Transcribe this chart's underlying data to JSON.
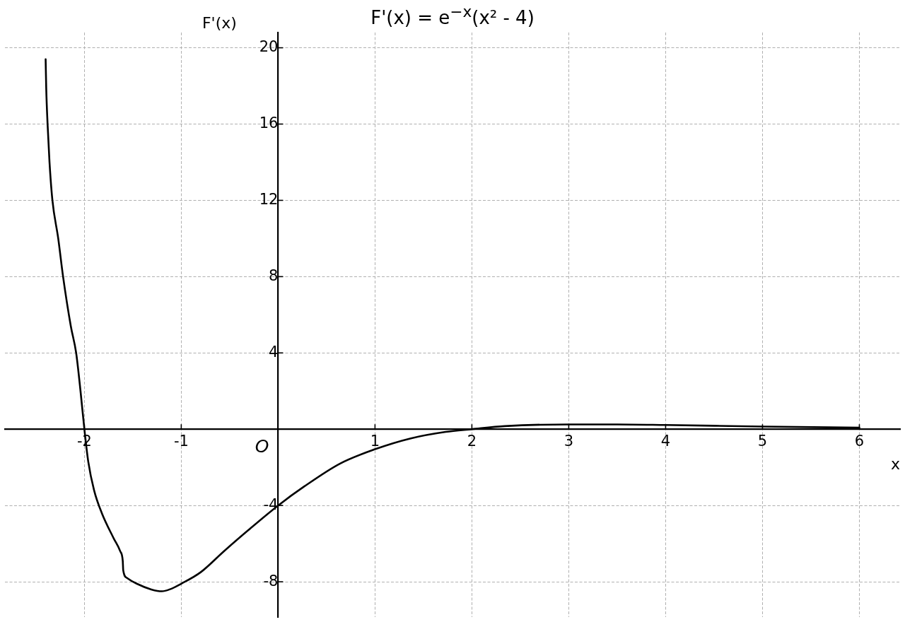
{
  "chart_data": {
    "type": "line",
    "title": "F'(x) = e$^{−x}$(x² - 4)",
    "xlabel": "x",
    "ylabel": "F'(x)",
    "annotations": [
      "O"
    ],
    "xlim": [
      -2.82,
      6.42
    ],
    "ylim": [
      -9.85,
      20.8
    ],
    "xticks": [
      -2,
      -1,
      1,
      2,
      3,
      4,
      5,
      6
    ],
    "yticks": [
      -8,
      -4,
      4,
      8,
      12,
      16,
      20
    ],
    "grid": true,
    "line_style": "solid",
    "series": [
      {
        "color": "#000000",
        "x": [
          -2.4,
          -2.394,
          -2.38,
          -2.36,
          -2.33,
          -2.27,
          -2.22,
          -2.14,
          -2.085,
          -2.04,
          -2.0,
          -1.96,
          -1.9,
          -1.82,
          -1.7,
          -1.63,
          -1.604,
          -1.599,
          -1.56,
          -1.46,
          -1.31,
          -1.2,
          -1.12,
          -1.0,
          -0.8,
          -0.56,
          -0.31,
          0,
          0.27,
          0.64,
          1.0,
          1.37,
          1.73,
          2.0,
          2.34,
          3.0,
          3.5,
          4.0,
          5.0,
          6.0
        ],
        "values": [
          19.4,
          17.9,
          16.0,
          14.0,
          12.0,
          10.0,
          8.0,
          5.4,
          4.0,
          2.0,
          0,
          -1.7,
          -3.2,
          -4.4,
          -5.7,
          -6.4,
          -6.9,
          -7.4,
          -7.8,
          -8.1,
          -8.4,
          -8.5,
          -8.4,
          -8.1,
          -7.5,
          -6.4,
          -5.3,
          -4.0,
          -3.0,
          -1.8,
          -1.05,
          -0.48,
          -0.14,
          0,
          0.16,
          0.25,
          0.25,
          0.22,
          0.14,
          0.08
        ]
      }
    ]
  }
}
